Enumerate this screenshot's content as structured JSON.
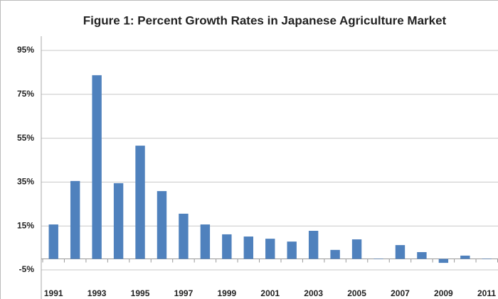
{
  "chart_data": {
    "type": "bar",
    "title": "Figure 1: Percent Growth Rates in Japanese Agriculture Market",
    "categories": [
      "1991",
      null,
      "1993",
      null,
      "1995",
      null,
      "1997",
      null,
      "1999",
      null,
      "2001",
      null,
      "2003",
      null,
      "2005",
      null,
      "2007",
      null,
      "2009",
      null,
      "2011"
    ],
    "values": [
      15.7,
      35.5,
      83.7,
      34.5,
      51.6,
      30.9,
      20.6,
      15.7,
      11.2,
      10.2,
      9.2,
      7.9,
      12.8,
      4.1,
      8.9,
      0.1,
      6.3,
      3.1,
      -1.8,
      1.5,
      0.1
    ],
    "color": "#4f81bd",
    "ylim": [
      -5,
      95
    ],
    "yticks": [
      {
        "value": -5,
        "label": "-5%"
      },
      {
        "value": 15,
        "label": "15%"
      },
      {
        "value": 35,
        "label": "35%"
      },
      {
        "value": 55,
        "label": "55%"
      },
      {
        "value": 75,
        "label": "75%"
      },
      {
        "value": 95,
        "label": "95%"
      }
    ],
    "grid": true
  }
}
